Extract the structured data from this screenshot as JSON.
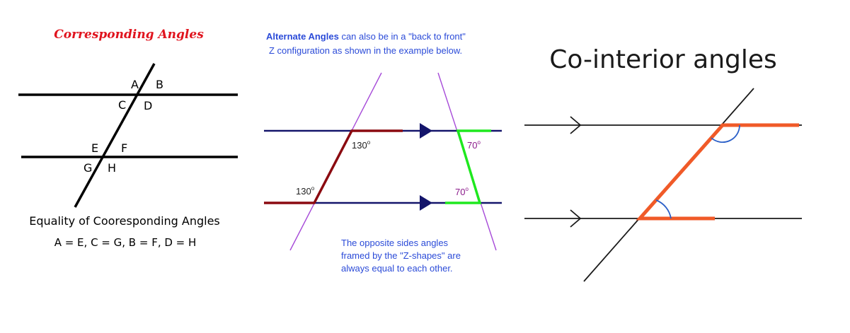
{
  "panel1": {
    "title": "Corresponding Angles",
    "labels": {
      "a": "A",
      "b": "B",
      "c": "C",
      "d": "D",
      "e": "E",
      "f": "F",
      "g": "G",
      "h": "H"
    },
    "caption": "Equality of Cooresponding Angles",
    "equation": "A = E,  C = G,  B = F,  D = H",
    "colors": {
      "title": "#e0141e",
      "lines": "#000000"
    }
  },
  "panel2": {
    "intro_bold": "Alternate Angles",
    "intro_rest": " can also be in a \"back to front\"",
    "intro_line2": "Z configuration as shown in the example below.",
    "angle_top_left": "130",
    "angle_bottom_left": "130",
    "angle_top_right": "70",
    "angle_bottom_right": "70",
    "degree": "o",
    "note_line1": "The opposite sides angles",
    "note_line2": "framed by the \"Z-shapes\" are",
    "note_line3": "always equal to each other.",
    "colors": {
      "text": "#2b4bd8",
      "parallel": "#14156b",
      "transversal": "#a64ad8",
      "z_left": "#8b0a10",
      "z_right": "#1ee81e",
      "angle_right": "#8b1a8b"
    }
  },
  "panel3": {
    "title": "Co-interior angles",
    "colors": {
      "lines": "#1a1a1a",
      "highlight": "#f05a28",
      "arc": "#2a5fc8"
    }
  }
}
